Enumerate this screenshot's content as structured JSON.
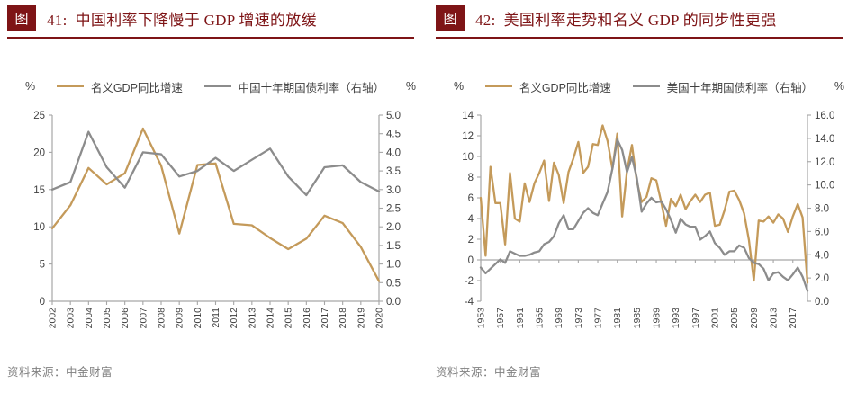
{
  "colors": {
    "rule": "#7E1416",
    "badge_bg": "#7E1416",
    "badge_fg": "#FFFFFF",
    "title": "#7E1416",
    "gdp": "#C49A5A",
    "rate": "#8C8C8C",
    "axis": "#A6A6A6",
    "tick_text": "#404040",
    "source": "#808080"
  },
  "figures": [
    {
      "badge": "图",
      "number": "41:",
      "title": "中国利率下降慢于 GDP 增速的放缓",
      "legend": {
        "left_unit": "%",
        "right_unit": "%",
        "items": [
          {
            "label": "名义GDP同比增速"
          },
          {
            "label": "中国十年期国债利率（右轴）"
          }
        ]
      },
      "source": "资料来源：中金财富",
      "chart_data": {
        "type": "line",
        "x": [
          2002,
          2003,
          2004,
          2005,
          2006,
          2007,
          2008,
          2009,
          2010,
          2011,
          2012,
          2013,
          2014,
          2015,
          2016,
          2017,
          2018,
          2019,
          2020
        ],
        "x_label_every": 1,
        "x_axis_at": 0,
        "left_axis": {
          "min": 0,
          "max": 25,
          "step": 5,
          "decimals": 0
        },
        "right_axis": {
          "min": 0,
          "max": 5,
          "step": 0.5,
          "decimals": 1
        },
        "grid": false,
        "legend_position": "top",
        "series": [
          {
            "name": "名义GDP同比增速",
            "axis": "left",
            "color_key": "gdp",
            "data_name": "china-nominal-gdp-line",
            "values": [
              9.8,
              12.9,
              17.9,
              15.7,
              17.2,
              23.2,
              18.2,
              9.1,
              18.3,
              18.5,
              10.4,
              10.2,
              8.5,
              7.0,
              8.4,
              11.5,
              10.5,
              7.3,
              2.7
            ]
          },
          {
            "name": "中国十年期国债利率（右轴）",
            "axis": "right",
            "color_key": "rate",
            "data_name": "china-10y-yield-line",
            "values": [
              3.0,
              3.2,
              4.55,
              3.6,
              3.05,
              4.0,
              3.95,
              3.35,
              3.5,
              3.85,
              3.5,
              3.8,
              4.1,
              3.35,
              2.85,
              3.6,
              3.65,
              3.2,
              2.95
            ]
          }
        ]
      }
    },
    {
      "badge": "图",
      "number": "42:",
      "title": "美国利率走势和名义 GDP 的同步性更强",
      "legend": {
        "left_unit": "%",
        "right_unit": "%",
        "items": [
          {
            "label": "名义GDP同比增速"
          },
          {
            "label": "美国十年期国债利率（右轴）"
          }
        ]
      },
      "source": "资料来源：中金财富",
      "chart_data": {
        "type": "line",
        "x": [
          1953,
          1954,
          1955,
          1956,
          1957,
          1958,
          1959,
          1960,
          1961,
          1962,
          1963,
          1964,
          1965,
          1966,
          1967,
          1968,
          1969,
          1970,
          1971,
          1972,
          1973,
          1974,
          1975,
          1976,
          1977,
          1978,
          1979,
          1980,
          1981,
          1982,
          1983,
          1984,
          1985,
          1986,
          1987,
          1988,
          1989,
          1990,
          1991,
          1992,
          1993,
          1994,
          1995,
          1996,
          1997,
          1998,
          1999,
          2000,
          2001,
          2002,
          2003,
          2004,
          2005,
          2006,
          2007,
          2008,
          2009,
          2010,
          2011,
          2012,
          2013,
          2014,
          2015,
          2016,
          2017,
          2018,
          2019,
          2020
        ],
        "x_label_every": 4,
        "x_axis_at": 0,
        "left_axis": {
          "min": -4,
          "max": 14,
          "step": 2,
          "decimals": 0
        },
        "right_axis": {
          "min": 0,
          "max": 16,
          "step": 2,
          "decimals": 1
        },
        "grid": false,
        "legend_position": "top",
        "series": [
          {
            "name": "名义GDP同比增速",
            "axis": "left",
            "color_key": "gdp",
            "data_name": "us-nominal-gdp-line",
            "values": [
              6.0,
              0.4,
              9.0,
              5.5,
              5.5,
              1.5,
              8.4,
              4.0,
              3.7,
              7.4,
              5.6,
              7.4,
              8.4,
              9.6,
              5.7,
              9.4,
              8.2,
              5.5,
              8.5,
              9.8,
              11.4,
              8.4,
              9.0,
              11.2,
              11.1,
              13.0,
              11.5,
              8.8,
              12.2,
              4.2,
              8.6,
              11.1,
              7.6,
              5.6,
              6.1,
              7.9,
              7.7,
              5.6,
              3.3,
              5.9,
              5.2,
              6.3,
              4.9,
              5.7,
              6.3,
              5.6,
              6.3,
              6.5,
              3.3,
              3.4,
              4.8,
              6.6,
              6.7,
              5.8,
              4.5,
              1.9,
              -2.0,
              3.8,
              3.7,
              4.2,
              3.6,
              4.4,
              4.0,
              2.7,
              4.2,
              5.4,
              4.1,
              -2.2
            ]
          },
          {
            "name": "美国十年期国债利率（右轴）",
            "axis": "right",
            "color_key": "rate",
            "data_name": "us-10y-yield-line",
            "values": [
              2.9,
              2.4,
              2.8,
              3.2,
              3.6,
              3.3,
              4.3,
              4.1,
              3.9,
              3.9,
              4.0,
              4.2,
              4.3,
              4.9,
              5.1,
              5.6,
              6.7,
              7.4,
              6.2,
              6.2,
              6.9,
              7.6,
              8.0,
              7.6,
              7.4,
              8.4,
              9.4,
              11.4,
              13.9,
              13.0,
              11.1,
              12.4,
              10.6,
              7.7,
              8.4,
              8.9,
              8.5,
              8.6,
              7.9,
              7.0,
              5.9,
              7.1,
              6.6,
              6.4,
              6.4,
              5.3,
              5.6,
              6.0,
              5.0,
              4.6,
              4.0,
              4.3,
              4.3,
              4.8,
              4.6,
              3.7,
              3.3,
              3.2,
              2.8,
              1.8,
              2.4,
              2.5,
              2.1,
              1.8,
              2.3,
              2.9,
              2.1,
              0.9
            ]
          }
        ]
      }
    }
  ]
}
